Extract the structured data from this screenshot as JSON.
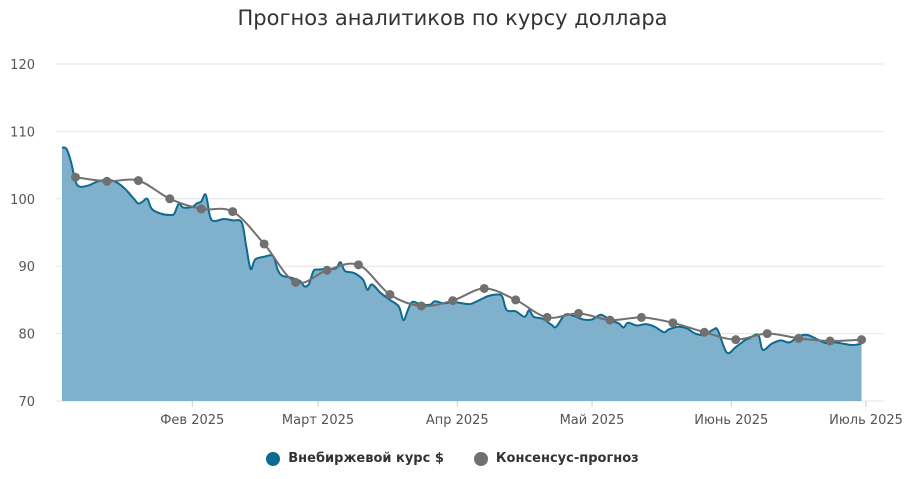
{
  "chart_data": {
    "type": "area",
    "title": "Прогноз аналитиков по курсу доллара",
    "x_axis": {
      "type": "date",
      "tick_labels": [
        {
          "label": "Фев 2025",
          "date": "2025-02-01"
        },
        {
          "label": "Март 2025",
          "date": "2025-03-01"
        },
        {
          "label": "Апр 2025",
          "date": "2025-04-01"
        },
        {
          "label": "Май 2025",
          "date": "2025-05-01"
        },
        {
          "label": "Июнь 2025",
          "date": "2025-06-01"
        },
        {
          "label": "Июль 2025",
          "date": "2025-07-01"
        }
      ],
      "range": [
        "2025-01-03",
        "2025-07-05"
      ]
    },
    "y_axis": {
      "range": [
        70,
        120
      ],
      "ticks": [
        70,
        80,
        90,
        100,
        110,
        120
      ],
      "grid": true
    },
    "legend": {
      "placement": "bottom"
    },
    "series": [
      {
        "name": "Внебиржевой курс $",
        "type": "area",
        "color": "#0e6a8e",
        "fill": "#7fb0cc",
        "points": [
          [
            "2025-01-03",
            107.6
          ],
          [
            "2025-01-04",
            107.4
          ],
          [
            "2025-01-05",
            105.5
          ],
          [
            "2025-01-06",
            102.6
          ],
          [
            "2025-01-07",
            101.8
          ],
          [
            "2025-01-09",
            102.0
          ],
          [
            "2025-01-11",
            102.6
          ],
          [
            "2025-01-13",
            102.8
          ],
          [
            "2025-01-15",
            102.5
          ],
          [
            "2025-01-17",
            101.5
          ],
          [
            "2025-01-19",
            100.0
          ],
          [
            "2025-01-20",
            99.3
          ],
          [
            "2025-01-21",
            99.6
          ],
          [
            "2025-01-22",
            100.0
          ],
          [
            "2025-01-23",
            98.5
          ],
          [
            "2025-01-25",
            97.8
          ],
          [
            "2025-01-27",
            97.6
          ],
          [
            "2025-01-28",
            97.8
          ],
          [
            "2025-01-29",
            99.3
          ],
          [
            "2025-01-30",
            98.7
          ],
          [
            "2025-02-01",
            98.8
          ],
          [
            "2025-02-02",
            99.3
          ],
          [
            "2025-02-03",
            99.6
          ],
          [
            "2025-02-04",
            100.6
          ],
          [
            "2025-02-05",
            97.3
          ],
          [
            "2025-02-06",
            96.7
          ],
          [
            "2025-02-08",
            97.0
          ],
          [
            "2025-02-10",
            96.8
          ],
          [
            "2025-02-12",
            96.5
          ],
          [
            "2025-02-13",
            93.0
          ],
          [
            "2025-02-14",
            89.6
          ],
          [
            "2025-02-15",
            91.0
          ],
          [
            "2025-02-17",
            91.4
          ],
          [
            "2025-02-19",
            91.5
          ],
          [
            "2025-02-20",
            89.5
          ],
          [
            "2025-02-21",
            88.6
          ],
          [
            "2025-02-23",
            88.3
          ],
          [
            "2025-02-25",
            87.8
          ],
          [
            "2025-02-26",
            87.0
          ],
          [
            "2025-02-27",
            87.4
          ],
          [
            "2025-02-28",
            89.3
          ],
          [
            "2025-03-01",
            89.5
          ],
          [
            "2025-03-03",
            89.6
          ],
          [
            "2025-03-05",
            89.7
          ],
          [
            "2025-03-06",
            90.6
          ],
          [
            "2025-03-07",
            89.3
          ],
          [
            "2025-03-09",
            89.0
          ],
          [
            "2025-03-11",
            88.0
          ],
          [
            "2025-03-12",
            86.5
          ],
          [
            "2025-03-13",
            87.3
          ],
          [
            "2025-03-15",
            86.0
          ],
          [
            "2025-03-17",
            85.0
          ],
          [
            "2025-03-19",
            84.0
          ],
          [
            "2025-03-20",
            82.0
          ],
          [
            "2025-03-21",
            83.5
          ],
          [
            "2025-03-22",
            84.7
          ],
          [
            "2025-03-24",
            84.3
          ],
          [
            "2025-03-26",
            84.3
          ],
          [
            "2025-03-27",
            84.8
          ],
          [
            "2025-03-29",
            84.5
          ],
          [
            "2025-03-31",
            84.7
          ],
          [
            "2025-04-02",
            84.5
          ],
          [
            "2025-04-04",
            84.4
          ],
          [
            "2025-04-06",
            85.0
          ],
          [
            "2025-04-08",
            85.6
          ],
          [
            "2025-04-10",
            85.8
          ],
          [
            "2025-04-11",
            85.5
          ],
          [
            "2025-04-12",
            83.5
          ],
          [
            "2025-04-14",
            83.3
          ],
          [
            "2025-04-16",
            82.5
          ],
          [
            "2025-04-17",
            83.5
          ],
          [
            "2025-04-18",
            82.5
          ],
          [
            "2025-04-20",
            82.2
          ],
          [
            "2025-04-22",
            81.3
          ],
          [
            "2025-04-23",
            81.0
          ],
          [
            "2025-04-25",
            82.8
          ],
          [
            "2025-04-27",
            82.6
          ],
          [
            "2025-04-29",
            82.1
          ],
          [
            "2025-05-01",
            82.1
          ],
          [
            "2025-05-03",
            82.8
          ],
          [
            "2025-05-05",
            82.0
          ],
          [
            "2025-05-07",
            81.5
          ],
          [
            "2025-05-08",
            80.9
          ],
          [
            "2025-05-09",
            81.6
          ],
          [
            "2025-05-11",
            81.2
          ],
          [
            "2025-05-13",
            81.4
          ],
          [
            "2025-05-15",
            81.0
          ],
          [
            "2025-05-17",
            80.2
          ],
          [
            "2025-05-18",
            80.6
          ],
          [
            "2025-05-20",
            81.0
          ],
          [
            "2025-05-22",
            80.8
          ],
          [
            "2025-05-24",
            80.0
          ],
          [
            "2025-05-26",
            79.8
          ],
          [
            "2025-05-28",
            80.6
          ],
          [
            "2025-05-29",
            80.5
          ],
          [
            "2025-05-31",
            77.2
          ],
          [
            "2025-06-02",
            78.0
          ],
          [
            "2025-06-04",
            79.0
          ],
          [
            "2025-06-05",
            79.3
          ],
          [
            "2025-06-07",
            79.8
          ],
          [
            "2025-06-08",
            77.6
          ],
          [
            "2025-06-10",
            78.5
          ],
          [
            "2025-06-12",
            79.0
          ],
          [
            "2025-06-14",
            78.7
          ],
          [
            "2025-06-16",
            79.6
          ],
          [
            "2025-06-18",
            79.8
          ],
          [
            "2025-06-20",
            79.2
          ],
          [
            "2025-06-22",
            78.6
          ],
          [
            "2025-06-24",
            78.7
          ],
          [
            "2025-06-26",
            78.5
          ],
          [
            "2025-06-28",
            78.3
          ],
          [
            "2025-06-30",
            78.5
          ]
        ]
      },
      {
        "name": "Консенсус-прогноз",
        "type": "line",
        "color": "#707070",
        "points": [
          [
            "2025-01-06",
            103.2
          ],
          [
            "2025-01-13",
            102.6
          ],
          [
            "2025-01-20",
            102.7
          ],
          [
            "2025-01-27",
            100.0
          ],
          [
            "2025-02-03",
            98.5
          ],
          [
            "2025-02-10",
            98.1
          ],
          [
            "2025-02-17",
            93.3
          ],
          [
            "2025-02-24",
            87.6
          ],
          [
            "2025-03-03",
            89.4
          ],
          [
            "2025-03-10",
            90.2
          ],
          [
            "2025-03-17",
            85.8
          ],
          [
            "2025-03-24",
            84.1
          ],
          [
            "2025-03-31",
            84.9
          ],
          [
            "2025-04-07",
            86.7
          ],
          [
            "2025-04-14",
            85.0
          ],
          [
            "2025-04-21",
            82.4
          ],
          [
            "2025-04-28",
            83.0
          ],
          [
            "2025-05-05",
            82.0
          ],
          [
            "2025-05-12",
            82.4
          ],
          [
            "2025-05-19",
            81.6
          ],
          [
            "2025-05-26",
            80.2
          ],
          [
            "2025-06-02",
            79.1
          ],
          [
            "2025-06-09",
            80.0
          ],
          [
            "2025-06-16",
            79.3
          ],
          [
            "2025-06-23",
            78.9
          ],
          [
            "2025-06-30",
            79.1
          ]
        ]
      }
    ]
  }
}
